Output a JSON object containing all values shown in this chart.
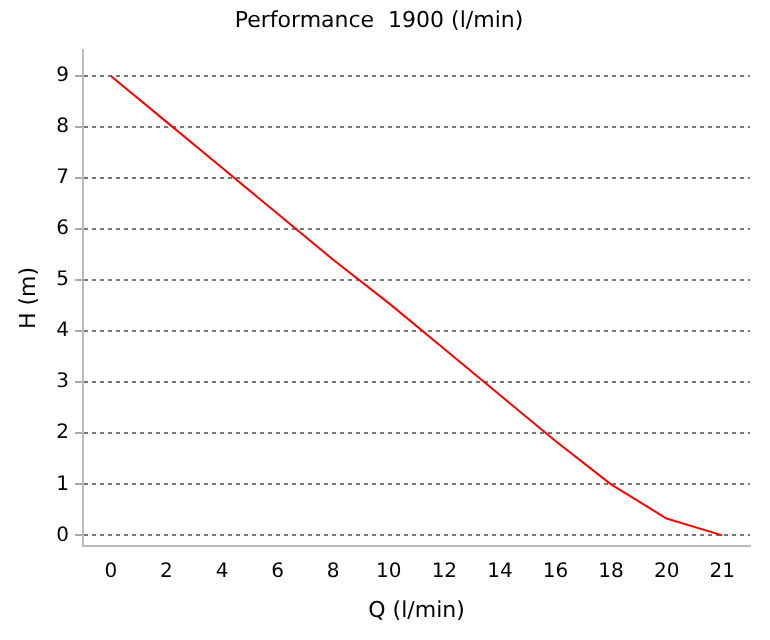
{
  "chart_data": {
    "type": "line",
    "title": "Performance  1900 (l/min)",
    "xlabel": "Q (l/min)",
    "ylabel": "H (m)",
    "categories": [
      "0",
      "2",
      "4",
      "6",
      "8",
      "10",
      "12",
      "14",
      "16",
      "18",
      "20",
      "21"
    ],
    "series": [
      {
        "color": "#ff0000",
        "values": [
          9,
          8.1,
          7.2,
          6.3,
          5.4,
          4.55,
          3.65,
          2.75,
          1.85,
          1.0,
          0.33,
          0
        ]
      }
    ],
    "ylim": [
      -0.2,
      9.5
    ],
    "yticks": [
      0,
      1,
      2,
      3,
      4,
      5,
      6,
      7,
      8,
      9
    ],
    "grid": "y",
    "legend": false,
    "marker": "none",
    "line_style": "solid"
  }
}
